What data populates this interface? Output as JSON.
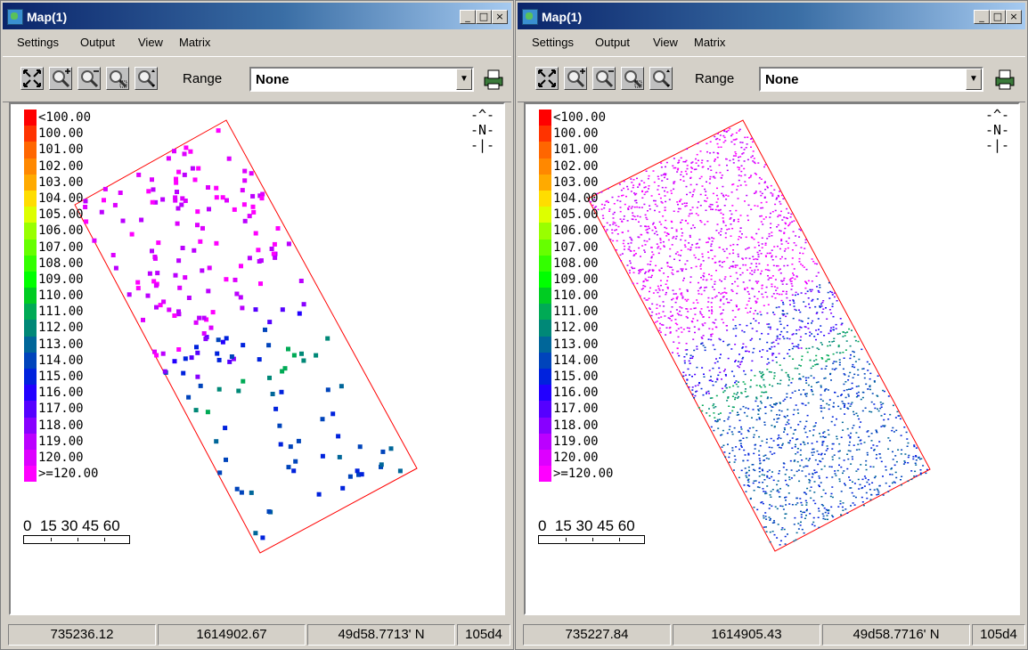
{
  "windows": [
    {
      "title": "Map(1)",
      "title_buttons": {
        "minimize": "_",
        "maximize": "□",
        "close": "×"
      },
      "menu": [
        "Settings",
        "Output",
        "View",
        "Matrix"
      ],
      "toolbar": {
        "tools": [
          "zoom-extent-icon",
          "zoom-in-icon",
          "zoom-out-icon",
          "zoom-window-icon",
          "pan-icon"
        ],
        "range_label": "Range",
        "range_value": "None",
        "print_icon": "print-icon"
      },
      "legend": [
        "<100.00",
        "100.00",
        "101.00",
        "102.00",
        "103.00",
        "104.00",
        "105.00",
        "106.00",
        "107.00",
        "108.00",
        "109.00",
        "110.00",
        "111.00",
        "112.00",
        "113.00",
        "114.00",
        "115.00",
        "116.00",
        "117.00",
        "118.00",
        "119.00",
        "120.00",
        ">=120.00"
      ],
      "north_arrow": "-^-\n-N-\n-|-",
      "scale_labels": "0  15 30 45 60",
      "status": [
        "735236.12",
        "1614902.67",
        "49d58.7713' N",
        "105d4"
      ],
      "plot_style": "sparse"
    },
    {
      "title": "Map(1)",
      "title_buttons": {
        "minimize": "_",
        "maximize": "□",
        "close": "×"
      },
      "menu": [
        "Settings",
        "Output",
        "View",
        "Matrix"
      ],
      "toolbar": {
        "tools": [
          "zoom-extent-icon",
          "zoom-in-icon",
          "zoom-out-icon",
          "zoom-window-icon",
          "pan-icon"
        ],
        "range_label": "Range",
        "range_value": "None",
        "print_icon": "print-icon"
      },
      "legend": [
        "<100.00",
        "100.00",
        "101.00",
        "102.00",
        "103.00",
        "104.00",
        "105.00",
        "106.00",
        "107.00",
        "108.00",
        "109.00",
        "110.00",
        "111.00",
        "112.00",
        "113.00",
        "114.00",
        "115.00",
        "116.00",
        "117.00",
        "118.00",
        "119.00",
        "120.00",
        ">=120.00"
      ],
      "north_arrow": "-^-\n-N-\n-|-",
      "scale_labels": "0  15 30 45 60",
      "status": [
        "735227.84",
        "1614905.43",
        "49d58.7716' N",
        "105d4"
      ],
      "plot_style": "dense"
    }
  ],
  "legend_colors": [
    "#ff0000",
    "#ff3300",
    "#ff6600",
    "#ff8800",
    "#ffaa00",
    "#ffdd00",
    "#ddff00",
    "#99ff00",
    "#66ff00",
    "#33ff00",
    "#00ff00",
    "#00cc22",
    "#00aa55",
    "#008877",
    "#006699",
    "#0044bb",
    "#0022dd",
    "#2200ff",
    "#5500ff",
    "#8800ff",
    "#bb00ff",
    "#dd00ff",
    "#ff00ff"
  ],
  "boundary_color": "#ff0000"
}
